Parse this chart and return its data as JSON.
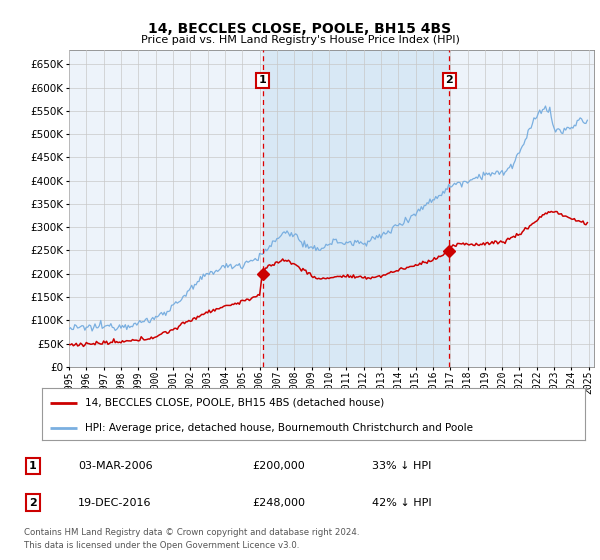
{
  "title": "14, BECCLES CLOSE, POOLE, BH15 4BS",
  "subtitle": "Price paid vs. HM Land Registry's House Price Index (HPI)",
  "legend_line1": "14, BECCLES CLOSE, POOLE, BH15 4BS (detached house)",
  "legend_line2": "HPI: Average price, detached house, Bournemouth Christchurch and Poole",
  "footer": "Contains HM Land Registry data © Crown copyright and database right 2024.\nThis data is licensed under the Open Government Licence v3.0.",
  "table": [
    {
      "num": "1",
      "date": "03-MAR-2006",
      "price": "£200,000",
      "pct": "33% ↓ HPI"
    },
    {
      "num": "2",
      "date": "19-DEC-2016",
      "price": "£248,000",
      "pct": "42% ↓ HPI"
    }
  ],
  "sale1_year": 2006.17,
  "sale1_price": 200000,
  "sale2_year": 2016.96,
  "sale2_price": 248000,
  "ylim_min": 0,
  "ylim_max": 680000,
  "ytick_step": 50000,
  "hpi_color": "#7aafe0",
  "price_color": "#cc0000",
  "background_color": "#edf3fa",
  "shaded_color": "#d8e8f5",
  "grid_color": "#c8c8c8",
  "sale_line_color": "#dd0000",
  "annotation_box_color": "#cc0000",
  "fig_bg": "#ffffff"
}
